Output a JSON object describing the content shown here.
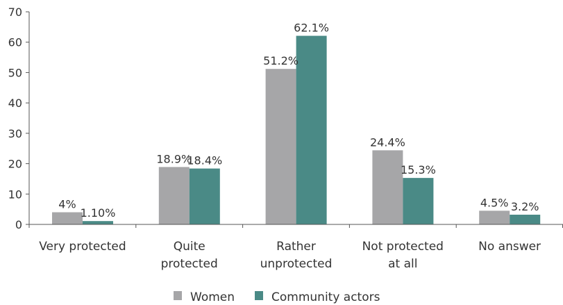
{
  "chart_data": {
    "type": "bar",
    "categories": [
      [
        "Very protected"
      ],
      [
        "Quite",
        "protected"
      ],
      [
        "Rather",
        "unprotected"
      ],
      [
        "Not protected",
        "at all"
      ],
      [
        "No answer"
      ]
    ],
    "series": [
      {
        "name": "Women",
        "color": "#a6a6a8",
        "values": [
          4,
          18.9,
          51.2,
          24.4,
          4.5
        ],
        "labels": [
          "4%",
          "18.9%",
          "51.2%",
          "24.4%",
          "4.5%"
        ]
      },
      {
        "name": "Community actors",
        "color": "#4a8a86",
        "values": [
          1.1,
          18.4,
          62.1,
          15.3,
          3.2
        ],
        "labels": [
          "1.10%",
          "18.4%",
          "62.1%",
          "15.3%",
          "3.2%"
        ]
      }
    ],
    "ylim": [
      0,
      70
    ],
    "yticks": [
      0,
      10,
      20,
      30,
      40,
      50,
      60,
      70
    ],
    "grid": false,
    "legend": "bottom-center"
  }
}
